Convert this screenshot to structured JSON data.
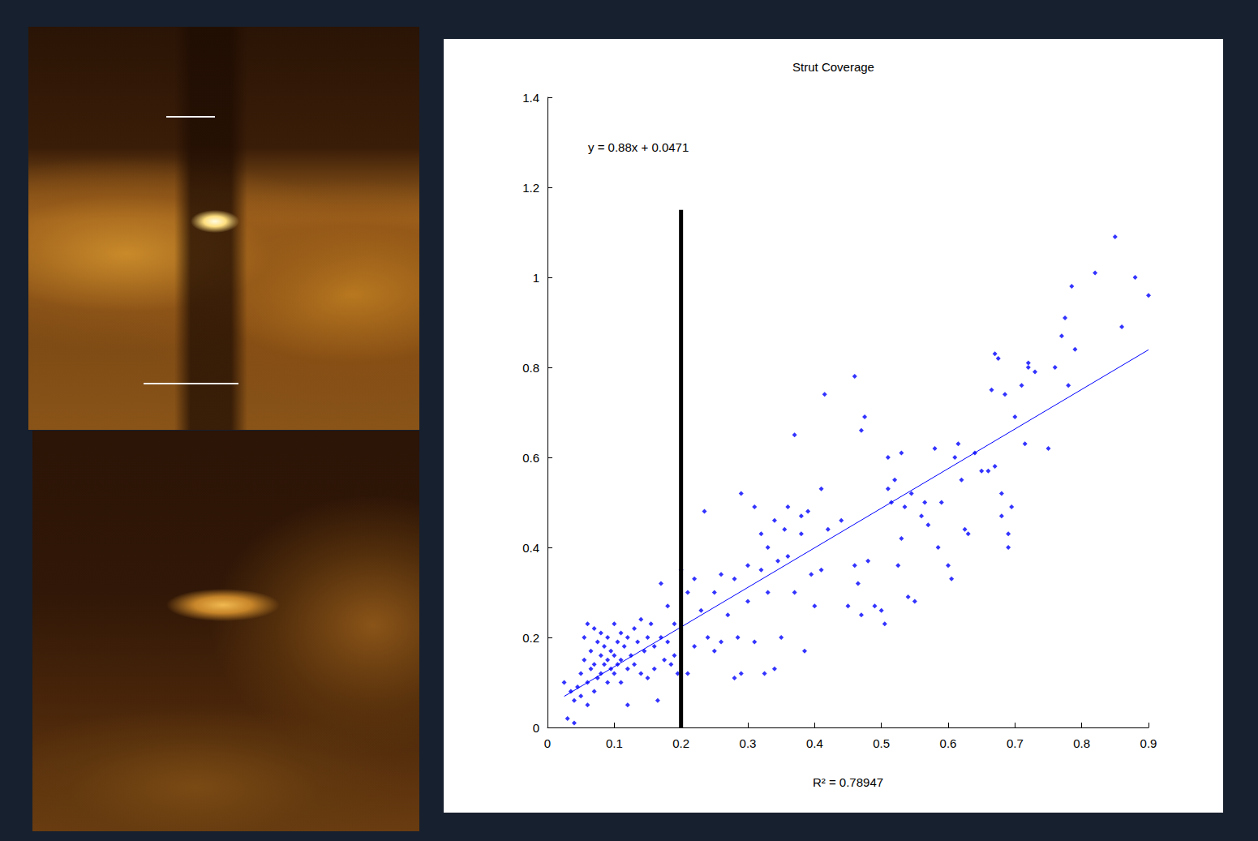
{
  "chart_data": {
    "type": "scatter",
    "title": "Strut Coverage",
    "annotation": "y = 0.88x + 0.0471",
    "xlabel": "R² = 0.78947",
    "xlim": [
      0,
      0.9
    ],
    "xticks": [
      0,
      0.1,
      0.2,
      0.3,
      0.4,
      0.5,
      0.6,
      0.7,
      0.8,
      0.9
    ],
    "ylim": [
      0,
      1.4
    ],
    "yticks": [
      0,
      0.2,
      0.4,
      0.6,
      0.8,
      1,
      1.2,
      1.4
    ],
    "grid": false,
    "color": "#0000ff",
    "marker": "diamond",
    "x": [
      0.025,
      0.03,
      0.035,
      0.04,
      0.04,
      0.045,
      0.05,
      0.05,
      0.055,
      0.055,
      0.06,
      0.06,
      0.06,
      0.065,
      0.065,
      0.07,
      0.07,
      0.07,
      0.075,
      0.075,
      0.08,
      0.08,
      0.08,
      0.085,
      0.085,
      0.09,
      0.09,
      0.09,
      0.095,
      0.095,
      0.1,
      0.1,
      0.1,
      0.105,
      0.105,
      0.11,
      0.11,
      0.11,
      0.115,
      0.12,
      0.12,
      0.12,
      0.125,
      0.13,
      0.13,
      0.135,
      0.14,
      0.14,
      0.145,
      0.15,
      0.15,
      0.155,
      0.16,
      0.16,
      0.165,
      0.17,
      0.17,
      0.175,
      0.18,
      0.18,
      0.185,
      0.19,
      0.19,
      0.195,
      0.2,
      0.21,
      0.21,
      0.22,
      0.22,
      0.23,
      0.235,
      0.24,
      0.25,
      0.25,
      0.26,
      0.26,
      0.27,
      0.28,
      0.28,
      0.285,
      0.29,
      0.29,
      0.3,
      0.3,
      0.31,
      0.31,
      0.32,
      0.32,
      0.325,
      0.33,
      0.33,
      0.34,
      0.34,
      0.345,
      0.35,
      0.355,
      0.36,
      0.36,
      0.37,
      0.37,
      0.38,
      0.38,
      0.385,
      0.39,
      0.395,
      0.4,
      0.41,
      0.41,
      0.415,
      0.42,
      0.44,
      0.45,
      0.46,
      0.46,
      0.465,
      0.47,
      0.47,
      0.475,
      0.48,
      0.49,
      0.5,
      0.505,
      0.51,
      0.51,
      0.515,
      0.52,
      0.525,
      0.53,
      0.53,
      0.535,
      0.54,
      0.545,
      0.55,
      0.56,
      0.565,
      0.57,
      0.58,
      0.585,
      0.59,
      0.6,
      0.605,
      0.61,
      0.615,
      0.62,
      0.625,
      0.63,
      0.64,
      0.65,
      0.66,
      0.665,
      0.67,
      0.67,
      0.675,
      0.68,
      0.68,
      0.685,
      0.69,
      0.69,
      0.695,
      0.7,
      0.71,
      0.715,
      0.72,
      0.72,
      0.73,
      0.75,
      0.76,
      0.77,
      0.775,
      0.78,
      0.785,
      0.79,
      0.82,
      0.85,
      0.86,
      0.88,
      0.9
    ],
    "values": [
      0.1,
      0.02,
      0.08,
      0.01,
      0.06,
      0.09,
      0.12,
      0.07,
      0.2,
      0.15,
      0.23,
      0.1,
      0.05,
      0.17,
      0.13,
      0.22,
      0.08,
      0.14,
      0.19,
      0.11,
      0.16,
      0.12,
      0.21,
      0.14,
      0.18,
      0.1,
      0.15,
      0.2,
      0.13,
      0.17,
      0.12,
      0.23,
      0.16,
      0.19,
      0.14,
      0.21,
      0.1,
      0.15,
      0.18,
      0.13,
      0.2,
      0.05,
      0.16,
      0.22,
      0.14,
      0.19,
      0.24,
      0.12,
      0.17,
      0.2,
      0.11,
      0.23,
      0.18,
      0.13,
      0.06,
      0.32,
      0.2,
      0.15,
      0.27,
      0.19,
      0.14,
      0.23,
      0.16,
      0.12,
      0.35,
      0.3,
      0.12,
      0.33,
      0.18,
      0.26,
      0.48,
      0.2,
      0.3,
      0.17,
      0.34,
      0.19,
      0.25,
      0.33,
      0.11,
      0.2,
      0.52,
      0.12,
      0.36,
      0.28,
      0.49,
      0.19,
      0.35,
      0.43,
      0.12,
      0.4,
      0.3,
      0.46,
      0.13,
      0.37,
      0.2,
      0.44,
      0.49,
      0.38,
      0.65,
      0.3,
      0.47,
      0.43,
      0.17,
      0.48,
      0.34,
      0.27,
      0.53,
      0.35,
      0.74,
      0.44,
      0.46,
      0.27,
      0.78,
      0.36,
      0.32,
      0.66,
      0.25,
      0.69,
      0.37,
      0.27,
      0.26,
      0.23,
      0.53,
      0.6,
      0.5,
      0.55,
      0.36,
      0.61,
      0.42,
      0.49,
      0.29,
      0.52,
      0.28,
      0.47,
      0.5,
      0.45,
      0.62,
      0.4,
      0.5,
      0.36,
      0.33,
      0.6,
      0.63,
      0.55,
      0.44,
      0.43,
      0.61,
      0.57,
      0.57,
      0.75,
      0.83,
      0.58,
      0.82,
      0.52,
      0.47,
      0.74,
      0.43,
      0.4,
      0.49,
      0.69,
      0.76,
      0.63,
      0.81,
      0.8,
      0.79,
      0.62,
      0.8,
      0.87,
      0.91,
      0.76,
      0.98,
      0.84,
      1.01,
      1.09,
      0.89,
      1.0,
      0.96
    ],
    "fit": {
      "slope": 0.88,
      "intercept": 0.0471,
      "x": [
        0.025,
        0.9
      ],
      "color": "#0000ff"
    },
    "reference_line": {
      "x": 0.2,
      "y": [
        0,
        1.15
      ],
      "color": "#000000"
    }
  }
}
